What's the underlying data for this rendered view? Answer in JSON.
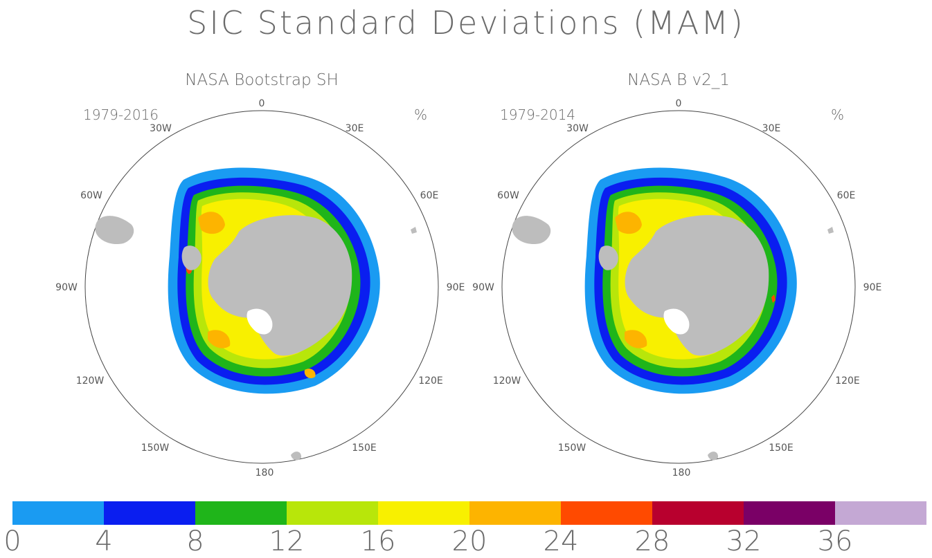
{
  "title": "SIC Standard Deviations (MAM)",
  "panels": [
    {
      "name": "NASA Bootstrap SH",
      "period": "1979-2016",
      "units": "%"
    },
    {
      "name": "NASA B v2_1",
      "period": "1979-2014",
      "units": "%"
    }
  ],
  "longitude_labels": {
    "top": "0",
    "top_right": "30E",
    "right_upper": "60E",
    "right": "90E",
    "right_lower": "120E",
    "bottom_right": "150E",
    "bottom": "180",
    "bottom_left": "150W",
    "left_lower": "120W",
    "left": "90W",
    "left_upper": "60W",
    "top_left": "30W"
  },
  "colorbar": {
    "labels": [
      "0",
      "4",
      "8",
      "12",
      "16",
      "20",
      "24",
      "28",
      "32",
      "36"
    ],
    "colors": [
      "#1a9bf2",
      "#0a1ef0",
      "#1fb51a",
      "#b8e60a",
      "#f8f000",
      "#fdb400",
      "#ff4a00",
      "#b8002e",
      "#7a0066",
      "#c4a8d4"
    ]
  },
  "colors": {
    "land": "#bdbdbd",
    "low": "#1a9bf2",
    "medium_low": "#0a1ef0",
    "medium": "#1fb51a",
    "medium_high": "#b8e60a",
    "high": "#f8f000",
    "higher": "#fdb400",
    "peak": "#ff4a00"
  }
}
